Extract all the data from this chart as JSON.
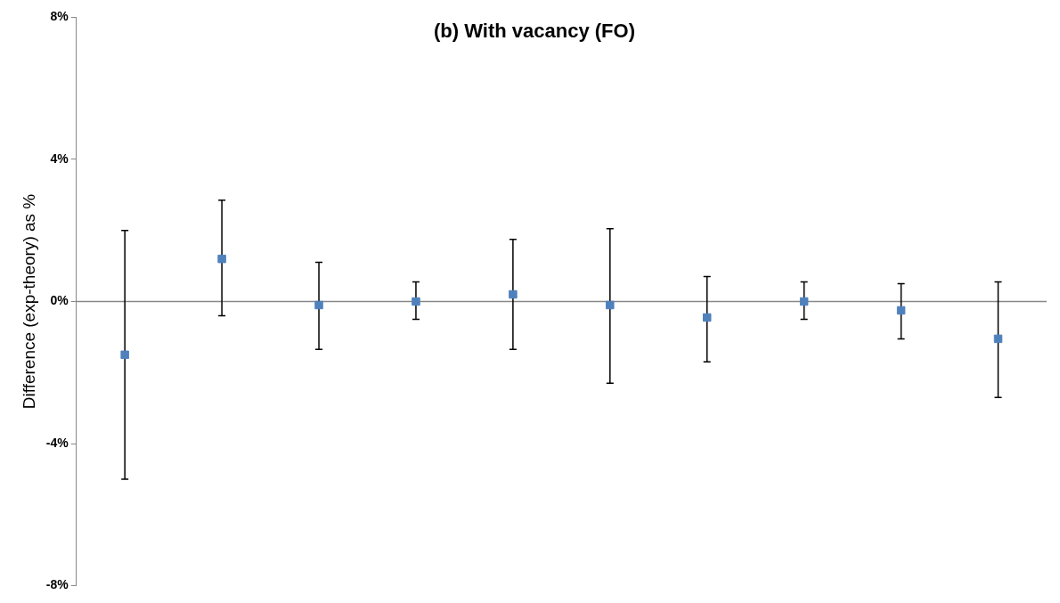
{
  "chart_data": {
    "type": "scatter",
    "title": "(b) With vacancy (FO)",
    "ylabel": "Difference (exp-theory) as %",
    "categories": [
      null,
      null,
      null,
      null,
      null,
      null,
      null,
      null,
      null,
      null
    ],
    "values": [
      -1.5,
      1.2,
      -0.1,
      0.0,
      0.2,
      -0.1,
      -0.45,
      0.0,
      -0.25,
      -1.05
    ],
    "errors": [
      [
        -5.0,
        2.0
      ],
      [
        -0.4,
        2.85
      ],
      [
        -1.35,
        1.1
      ],
      [
        -0.5,
        0.55
      ],
      [
        -1.35,
        1.75
      ],
      [
        -2.3,
        2.05
      ],
      [
        -1.7,
        0.7
      ],
      [
        -0.5,
        0.55
      ],
      [
        -1.05,
        0.5
      ],
      [
        -2.7,
        0.55
      ]
    ],
    "color": "#4f81bd",
    "marker": "square",
    "ylim": [
      -8,
      8
    ],
    "yticks": [
      {
        "value": -8,
        "label": "-8%"
      },
      {
        "value": -4,
        "label": "-4%"
      },
      {
        "value": 0,
        "label": "0%"
      },
      {
        "value": 4,
        "label": "4%"
      },
      {
        "value": 8,
        "label": "8%"
      }
    ],
    "ref_lines": [
      {
        "axis": "y",
        "value": 0,
        "color": "#888888"
      }
    ],
    "tick_labels": "y",
    "grid": false,
    "legend": false
  }
}
